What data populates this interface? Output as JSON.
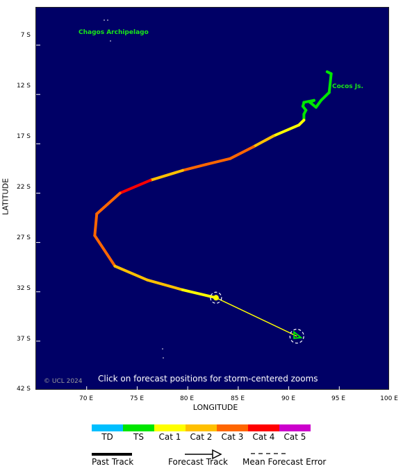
{
  "axes": {
    "y_title": "LATITUDE",
    "x_title": "LONGITUDE",
    "y_ticks": [
      "7 S",
      "12 S",
      "17 S",
      "22 S",
      "27 S",
      "32 S",
      "37 S",
      "42 S"
    ],
    "x_ticks": [
      "70 E",
      "75 E",
      "80 E",
      "85 E",
      "90 E",
      "95 E",
      "100 E"
    ]
  },
  "map": {
    "background_color": "#000066",
    "labels": {
      "chagos": "Chagos Archipelago",
      "cocos": "Cocos Js."
    },
    "copyright": "© UCL 2024",
    "click_hint": "Click on forecast positions for storm-centered zooms"
  },
  "chart_data": {
    "type": "map-track",
    "lon_range": [
      65,
      100
    ],
    "lat_range": [
      -42,
      -3
    ],
    "past_track": [
      {
        "lon": 93.8,
        "lat": -9.7,
        "cat": "TS"
      },
      {
        "lon": 94.2,
        "lat": -9.9,
        "cat": "TS"
      },
      {
        "lon": 94.0,
        "lat": -11.8,
        "cat": "TS"
      },
      {
        "lon": 93.2,
        "lat": -12.6,
        "cat": "TS"
      },
      {
        "lon": 92.7,
        "lat": -13.3,
        "cat": "TS"
      },
      {
        "lon": 92.1,
        "lat": -12.8,
        "cat": "TS"
      },
      {
        "lon": 92.5,
        "lat": -12.6,
        "cat": "TS"
      },
      {
        "lon": 91.5,
        "lat": -12.8,
        "cat": "TS"
      },
      {
        "lon": 91.4,
        "lat": -13.2,
        "cat": "TS"
      },
      {
        "lon": 91.7,
        "lat": -13.6,
        "cat": "TS"
      },
      {
        "lon": 91.5,
        "lat": -14.0,
        "cat": "TS"
      },
      {
        "lon": 91.5,
        "lat": -14.6,
        "cat": "TS"
      },
      {
        "lon": 91.0,
        "lat": -15.1,
        "cat": "Cat 1"
      },
      {
        "lon": 88.5,
        "lat": -16.2,
        "cat": "Cat 1"
      },
      {
        "lon": 86.5,
        "lat": -17.3,
        "cat": "Cat 2"
      },
      {
        "lon": 84.2,
        "lat": -18.5,
        "cat": "Cat 3"
      },
      {
        "lon": 81.8,
        "lat": -19.1,
        "cat": "Cat 3"
      },
      {
        "lon": 79.5,
        "lat": -19.7,
        "cat": "Cat 3"
      },
      {
        "lon": 76.3,
        "lat": -20.7,
        "cat": "Cat 2"
      },
      {
        "lon": 73.3,
        "lat": -22.0,
        "cat": "Cat 4"
      },
      {
        "lon": 71.0,
        "lat": -24.1,
        "cat": "Cat 3"
      },
      {
        "lon": 70.8,
        "lat": -26.3,
        "cat": "Cat 3"
      },
      {
        "lon": 72.8,
        "lat": -29.4,
        "cat": "Cat 3"
      },
      {
        "lon": 76.0,
        "lat": -30.8,
        "cat": "Cat 2"
      },
      {
        "lon": 79.5,
        "lat": -31.8,
        "cat": "Cat 2"
      },
      {
        "lon": 82.8,
        "lat": -32.6,
        "cat": "Cat 1"
      }
    ],
    "forecast_track": [
      {
        "lon": 82.8,
        "lat": -32.6,
        "cat": "Cat 1"
      },
      {
        "lon": 90.8,
        "lat": -36.5,
        "cat": "TS"
      }
    ],
    "forecast_points": [
      {
        "lon": 82.8,
        "lat": -32.6,
        "cat": "Cat 1"
      },
      {
        "lon": 90.8,
        "lat": -36.5,
        "cat": "TS"
      }
    ]
  },
  "legend": {
    "categories": [
      {
        "label": "TD",
        "color": "#00bfff"
      },
      {
        "label": "TS",
        "color": "#00e600"
      },
      {
        "label": "Cat 1",
        "color": "#ffff00"
      },
      {
        "label": "Cat 2",
        "color": "#ffc000"
      },
      {
        "label": "Cat 3",
        "color": "#ff6600"
      },
      {
        "label": "Cat 4",
        "color": "#ff0000"
      },
      {
        "label": "Cat 5",
        "color": "#cc00cc"
      }
    ],
    "past_track_label": "Past Track",
    "forecast_track_label": "Forecast Track",
    "mean_error_label": "Mean Forecast Error"
  }
}
